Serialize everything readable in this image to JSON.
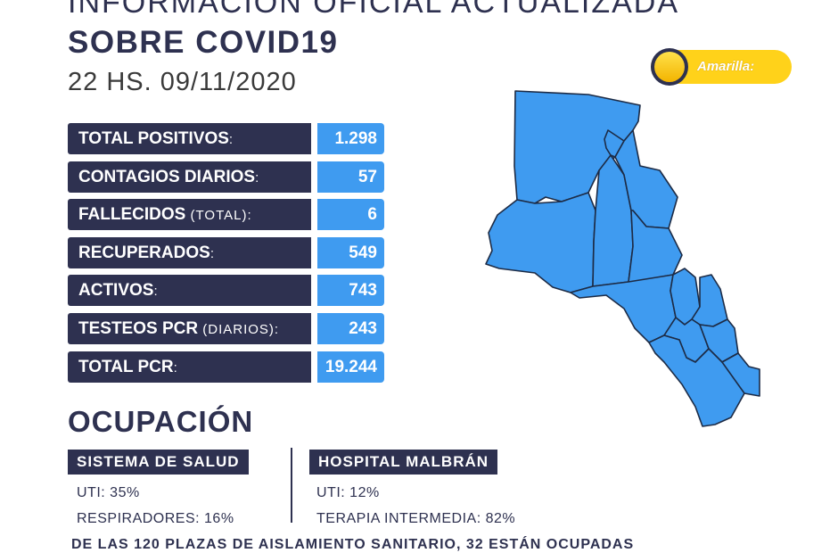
{
  "header": {
    "top_line": "INFORMACIÓN OFICIAL ACTUALIZADA",
    "title": "SOBRE COVID19",
    "datetime": "22 HS. 09/11/2020"
  },
  "stats": [
    {
      "label": "TOTAL POSITIVOS",
      "sub": "",
      "suffix": ":",
      "value": "1.298"
    },
    {
      "label": "CONTAGIOS DIARIOS",
      "sub": "",
      "suffix": ":",
      "value": "57"
    },
    {
      "label": "FALLECIDOS",
      "sub": " (TOTAL)",
      "suffix": ":",
      "value": "6"
    },
    {
      "label": "RECUPERADOS",
      "sub": "",
      "suffix": ":",
      "value": "549"
    },
    {
      "label": "ACTIVOS",
      "sub": "",
      "suffix": ":",
      "value": "743"
    },
    {
      "label": "TESTEOS PCR",
      "sub": " (DIARIOS)",
      "suffix": ":",
      "value": "243"
    },
    {
      "label": "TOTAL PCR",
      "sub": "",
      "suffix": ":",
      "value": "19.244"
    }
  ],
  "occupancy": {
    "title": "OCUPACIÓN",
    "health_system": {
      "heading": "SISTEMA DE SALUD",
      "uti": "UTI: 35%",
      "respirators": "RESPIRADORES: 16%"
    },
    "hospital": {
      "heading": "HOSPITAL MALBRÁN",
      "uti": "UTI: 12%",
      "intermediate": "TERAPIA INTERMEDIA: 82%"
    }
  },
  "footer": "DE LAS 120 PLAZAS DE AISLAMIENTO SANITARIO, 32 ESTÁN OCUPADAS",
  "badge": {
    "label": "Amarilla:"
  },
  "colors": {
    "navy": "#2e3150",
    "blue": "#3f9bf0",
    "yellow": "#ffd21a",
    "map_fill": "#3f9bf0"
  }
}
